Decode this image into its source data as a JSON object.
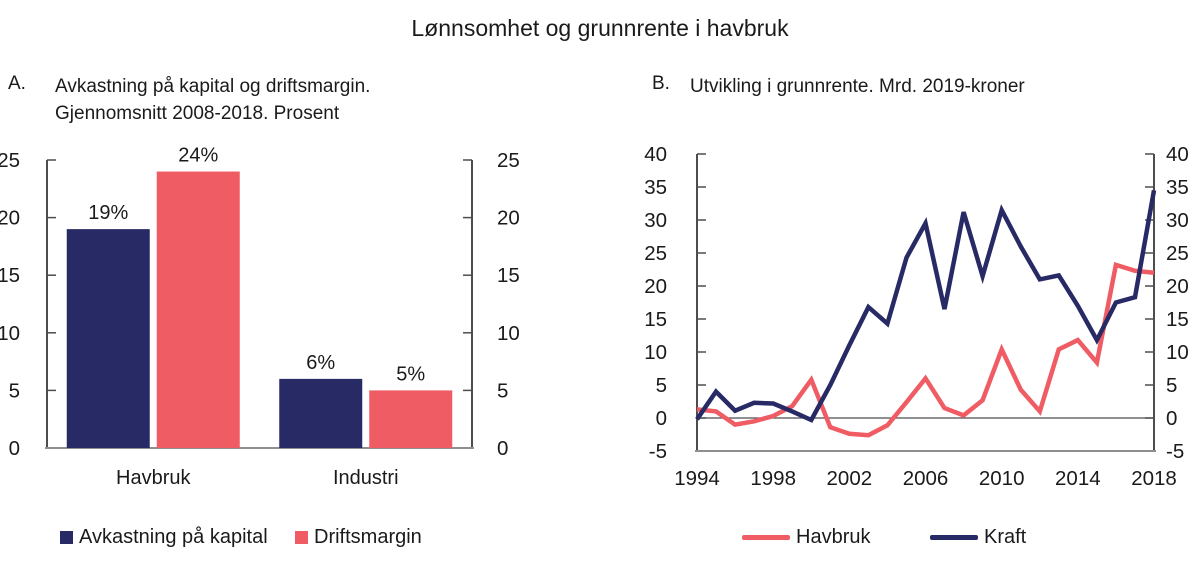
{
  "title": "Lønnsomhet og grunnrente i havbruk",
  "colors": {
    "navy": "#282A66",
    "red": "#F05C63",
    "axis": "#4d4d4d",
    "baseline": "#8f8f8f",
    "zero_line": "#4d4d4d",
    "text": "#1a1a1a"
  },
  "panels": {
    "a": {
      "label": "A.",
      "title_line1": "Avkastning på kapital og driftsmargin.",
      "title_line2": "Gjennomsnitt 2008-2018. Prosent",
      "legend": [
        {
          "label": "Avkastning på kapital",
          "color": "#282A66",
          "swatch": "square"
        },
        {
          "label": "Driftsmargin",
          "color": "#F05C63",
          "swatch": "square"
        }
      ]
    },
    "b": {
      "label": "B.",
      "title": "Utvikling i grunnrente. Mrd. 2019-kroner",
      "legend": [
        {
          "label": "Havbruk",
          "color": "#F05C63",
          "swatch": "line"
        },
        {
          "label": "Kraft",
          "color": "#282A66",
          "swatch": "line"
        }
      ]
    }
  },
  "chart_data": [
    {
      "type": "bar",
      "panel": "A",
      "title": "Avkastning på kapital og driftsmargin. Gjennomsnitt 2008-2018. Prosent",
      "categories": [
        "Havbruk",
        "Industri"
      ],
      "series": [
        {
          "name": "Avkastning på kapital",
          "color": "#282A66",
          "values": [
            19,
            6
          ],
          "labels": [
            "19%",
            "6%"
          ]
        },
        {
          "name": "Driftsmargin",
          "color": "#F05C63",
          "values": [
            24,
            5
          ],
          "labels": [
            "24%",
            "5%"
          ]
        }
      ],
      "ylabel": "Prosent",
      "ylim": [
        0,
        25
      ],
      "yticks": [
        0,
        5,
        10,
        15,
        20,
        25
      ],
      "dual_axis": true,
      "grid": false,
      "legend_position": "bottom"
    },
    {
      "type": "line",
      "panel": "B",
      "title": "Utvikling i grunnrente. Mrd. 2019-kroner",
      "x": [
        1994,
        1995,
        1996,
        1997,
        1998,
        1999,
        2000,
        2001,
        2002,
        2003,
        2004,
        2005,
        2006,
        2007,
        2008,
        2009,
        2010,
        2011,
        2012,
        2013,
        2014,
        2015,
        2016,
        2017,
        2018
      ],
      "xticks": [
        1994,
        1998,
        2002,
        2006,
        2010,
        2014,
        2018
      ],
      "series": [
        {
          "name": "Havbruk",
          "color": "#F05C63",
          "values": [
            1.3,
            1.0,
            -1.0,
            -0.5,
            0.3,
            1.8,
            5.8,
            -1.4,
            -2.4,
            -2.6,
            -1.1,
            2.4,
            6.0,
            1.5,
            0.4,
            2.7,
            10.4,
            4.3,
            1.0,
            10.4,
            11.8,
            8.4,
            23.2,
            22.3,
            22.0
          ]
        },
        {
          "name": "Kraft",
          "color": "#282A66",
          "values": [
            -0.2,
            4.0,
            1.1,
            2.3,
            2.2,
            1.0,
            -0.3,
            5.0,
            11.0,
            16.8,
            14.3,
            24.3,
            29.5,
            16.5,
            31.2,
            21.5,
            31.5,
            26.0,
            21.0,
            21.6,
            17.0,
            11.8,
            17.5,
            18.3,
            34.5
          ]
        }
      ],
      "ylabel": "Mrd. 2019-kroner",
      "ylim": [
        -5,
        40
      ],
      "yticks": [
        -5,
        0,
        5,
        10,
        15,
        20,
        25,
        30,
        35,
        40
      ],
      "zero_line_at": 0,
      "dual_axis": true,
      "grid": false,
      "legend_position": "bottom"
    }
  ]
}
